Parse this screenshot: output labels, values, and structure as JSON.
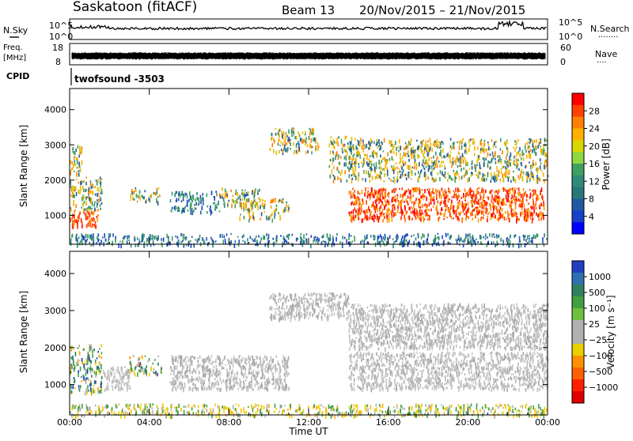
{
  "header": {
    "title": "Saskatoon (fitACF)",
    "beam": "Beam 13",
    "date_range": "20/Nov/2015 – 21/Nov/2015"
  },
  "side_labels": {
    "nsky": "N.Sky",
    "nsearch": "N.Search",
    "nsearch_dots": "········",
    "freq": "Freq.",
    "mhz": "[MHz]",
    "nave": "Nave",
    "nave_dots": "····",
    "cpid": "CPID",
    "cpid_value": "twofsound -3503"
  },
  "strip_ticks": {
    "noise_left": [
      "10^5",
      "10^0"
    ],
    "noise_right": [
      "10^5",
      "10^0"
    ],
    "freq_left": [
      "18",
      "8"
    ],
    "freq_right": [
      "60",
      "0"
    ]
  },
  "chart_data": [
    {
      "type": "heatmap",
      "panel": "power",
      "ylabel": "Slant Range [km]",
      "yticks": [
        1000,
        2000,
        3000,
        4000
      ],
      "ylim": [
        180,
        4600
      ],
      "xlim": [
        0,
        24
      ],
      "colorbar": {
        "label": "Power [dB]",
        "ticks": [
          "28",
          "24",
          "20",
          "16",
          "12",
          "8",
          "4"
        ],
        "colors": [
          "#ff0000",
          "#ff4000",
          "#ff8000",
          "#ffb000",
          "#d8d800",
          "#90d840",
          "#40a060",
          "#308c78",
          "#287878",
          "#205aa0",
          "#1840c8",
          "#0000ff"
        ]
      },
      "regions": [
        {
          "t": [
            0.0,
            1.4
          ],
          "r": [
            700,
            1200
          ],
          "level": "high"
        },
        {
          "t": [
            0.0,
            1.6
          ],
          "r": [
            1200,
            2100
          ],
          "level": "mid"
        },
        {
          "t": [
            0.0,
            0.6
          ],
          "r": [
            2100,
            3000
          ],
          "level": "mid"
        },
        {
          "t": [
            3.0,
            4.5
          ],
          "r": [
            1400,
            1800
          ],
          "level": "mid"
        },
        {
          "t": [
            5.0,
            7.5
          ],
          "r": [
            1100,
            1700
          ],
          "level": "low"
        },
        {
          "t": [
            7.5,
            9.5
          ],
          "r": [
            1300,
            1800
          ],
          "level": "mid"
        },
        {
          "t": [
            8.5,
            11.0
          ],
          "r": [
            900,
            1500
          ],
          "level": "mid"
        },
        {
          "t": [
            10.0,
            12.5
          ],
          "r": [
            2800,
            3500
          ],
          "level": "mid"
        },
        {
          "t": [
            13.0,
            14.2
          ],
          "r": [
            2000,
            3300
          ],
          "level": "mid"
        },
        {
          "t": [
            14.0,
            23.8
          ],
          "r": [
            900,
            1800
          ],
          "level": "high"
        },
        {
          "t": [
            14.0,
            24.0
          ],
          "r": [
            2000,
            3200
          ],
          "level": "mid"
        },
        {
          "t": [
            0.0,
            24.0
          ],
          "r": [
            180,
            500
          ],
          "level": "low"
        }
      ]
    },
    {
      "type": "heatmap",
      "panel": "velocity",
      "ylabel": "Slant Range [km]",
      "yticks": [
        1000,
        2000,
        3000,
        4000
      ],
      "ylim": [
        180,
        4600
      ],
      "xlim": [
        0,
        24
      ],
      "xticks": [
        "00:00",
        "04:00",
        "08:00",
        "12:00",
        "16:00",
        "20:00",
        "00:00"
      ],
      "xlabel": "Time UT",
      "colorbar": {
        "label": "Velocity [m s⁻¹]",
        "ticks": [
          "1000",
          "500",
          "100",
          "25",
          "−25",
          "−100",
          "−500",
          "−1000"
        ],
        "colors": [
          "#2040c0",
          "#3070b0",
          "#308060",
          "#40a040",
          "#70c040",
          "#b0b0b0",
          "#b0b0b0",
          "#e8d000",
          "#ff9000",
          "#ff6000",
          "#ff2000",
          "#e00000"
        ]
      },
      "regions": [
        {
          "t": [
            0.0,
            1.6
          ],
          "r": [
            800,
            2100
          ],
          "level": "mixed"
        },
        {
          "t": [
            1.6,
            3.0
          ],
          "r": [
            900,
            1500
          ],
          "level": "gray"
        },
        {
          "t": [
            3.0,
            4.6
          ],
          "r": [
            1300,
            1800
          ],
          "level": "mixed"
        },
        {
          "t": [
            5.0,
            11.0
          ],
          "r": [
            900,
            1800
          ],
          "level": "gray"
        },
        {
          "t": [
            10.0,
            14.0
          ],
          "r": [
            2800,
            3500
          ],
          "level": "gray"
        },
        {
          "t": [
            14.0,
            24.0
          ],
          "r": [
            900,
            1900
          ],
          "level": "gray"
        },
        {
          "t": [
            14.0,
            24.0
          ],
          "r": [
            2000,
            3200
          ],
          "level": "gray"
        },
        {
          "t": [
            0.0,
            24.0
          ],
          "r": [
            180,
            500
          ],
          "level": "low"
        }
      ]
    }
  ]
}
